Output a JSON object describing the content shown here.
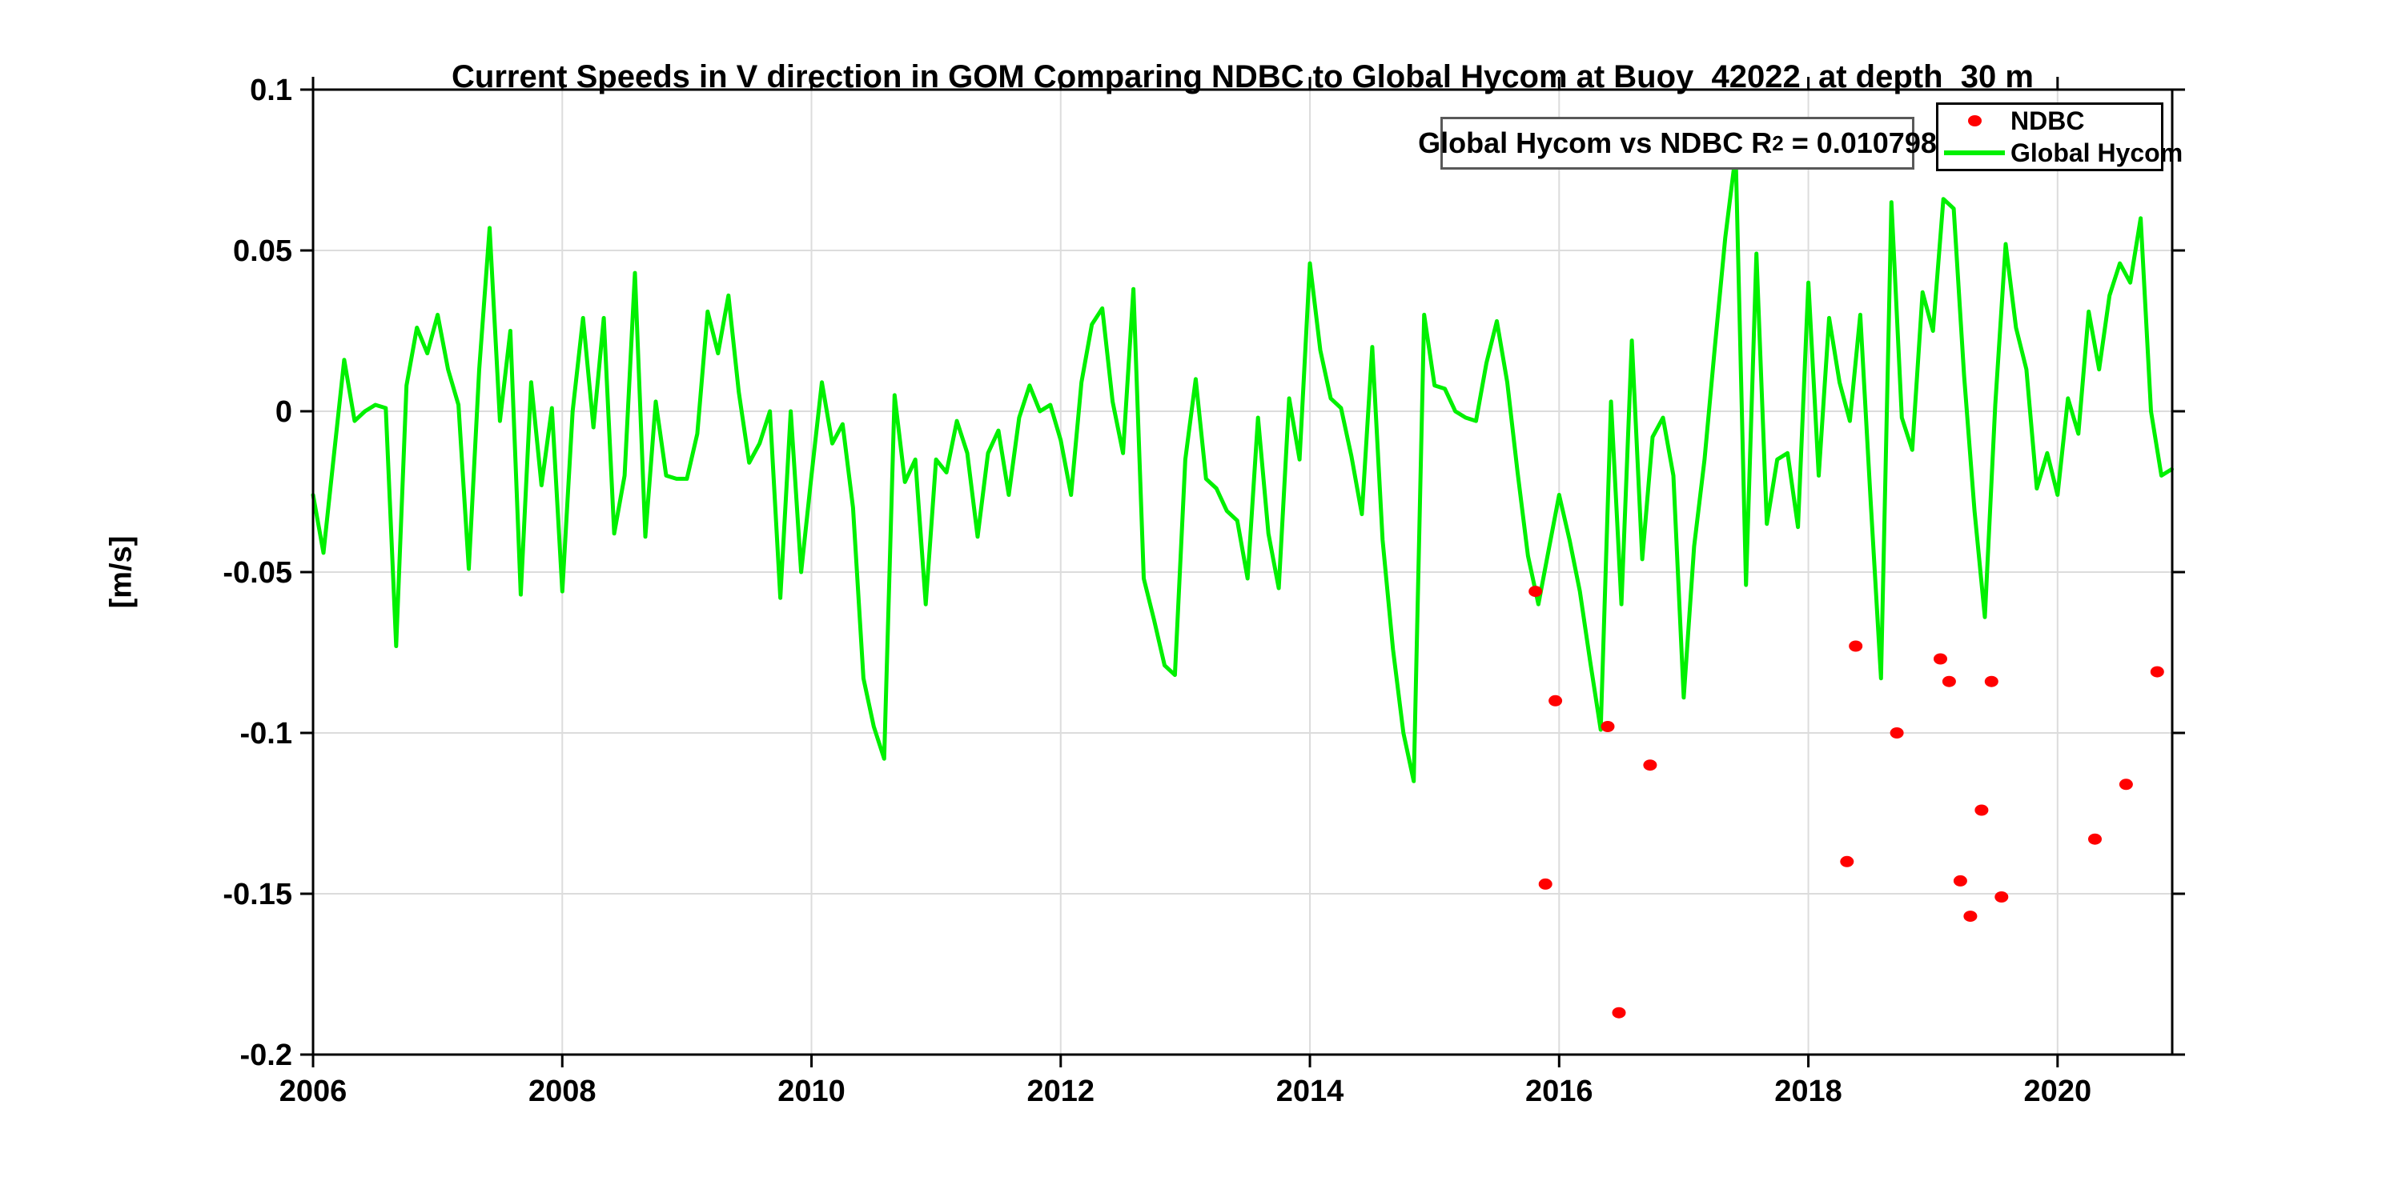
{
  "title": "Current Speeds in V direction in GOM Comparing NDBC to Global Hycom at Buoy  42022  at depth  30 m",
  "ylabel": "[m/s]",
  "annotation": {
    "prefix": "Global Hycom vs NDBC R",
    "sup": "2",
    "suffix": " = 0.010798"
  },
  "legend": {
    "items": [
      {
        "label": "NDBC",
        "color": "#ff0000",
        "marker": "dot"
      },
      {
        "label": "Global Hycom",
        "color": "#00f000",
        "marker": "line"
      }
    ]
  },
  "chart_data": {
    "type": "line+scatter",
    "title": "Current Speeds in V direction in GOM Comparing NDBC to Global Hycom at Buoy  42022  at depth  30 m",
    "xlabel": "",
    "ylabel": "[m/s]",
    "xlim": [
      2006,
      2020.92
    ],
    "ylim": [
      -0.2,
      0.1
    ],
    "x_tick_labels": [
      "2006",
      "2008",
      "2010",
      "2012",
      "2014",
      "2016",
      "2018",
      "2020"
    ],
    "y_tick_labels": [
      "0.1",
      "0.05",
      "0",
      "-0.05",
      "-0.1",
      "-0.15",
      "-0.2"
    ],
    "grid": true,
    "legend_position": "top-right",
    "colors": {
      "line": "#00f000",
      "scatter": "#ff0000",
      "grid": "#dcdcdc",
      "axis": "#000000"
    },
    "series": [
      {
        "name": "Global Hycom",
        "type": "line",
        "color": "#00f000",
        "x_start": 2006.0,
        "x_step_years": 0.0833333,
        "y": [
          -0.026,
          -0.044,
          -0.014,
          0.016,
          -0.003,
          0.0,
          0.002,
          0.001,
          -0.073,
          0.008,
          0.026,
          0.018,
          0.03,
          0.013,
          0.002,
          -0.049,
          0.013,
          0.057,
          -0.003,
          0.025,
          -0.057,
          0.009,
          -0.023,
          0.001,
          -0.056,
          0.0,
          0.029,
          -0.005,
          0.029,
          -0.038,
          -0.02,
          0.043,
          -0.039,
          0.003,
          -0.02,
          -0.021,
          -0.021,
          -0.007,
          0.031,
          0.018,
          0.036,
          0.006,
          -0.016,
          -0.01,
          0.0,
          -0.058,
          0.0,
          -0.05,
          -0.02,
          0.009,
          -0.01,
          -0.004,
          -0.03,
          -0.083,
          -0.098,
          -0.108,
          0.005,
          -0.022,
          -0.015,
          -0.06,
          -0.015,
          -0.019,
          -0.003,
          -0.013,
          -0.039,
          -0.013,
          -0.006,
          -0.026,
          -0.002,
          0.008,
          0.0,
          0.002,
          -0.009,
          -0.026,
          0.009,
          0.027,
          0.032,
          0.003,
          -0.013,
          0.038,
          -0.052,
          -0.065,
          -0.079,
          -0.082,
          -0.015,
          0.01,
          -0.021,
          -0.024,
          -0.031,
          -0.034,
          -0.052,
          -0.002,
          -0.038,
          -0.055,
          0.004,
          -0.015,
          0.046,
          0.019,
          0.004,
          0.001,
          -0.014,
          -0.032,
          0.02,
          -0.04,
          -0.074,
          -0.1,
          -0.115,
          0.03,
          0.008,
          0.007,
          0.0,
          -0.002,
          -0.003,
          0.015,
          0.028,
          0.009,
          -0.019,
          -0.045,
          -0.06,
          -0.043,
          -0.026,
          -0.04,
          -0.056,
          -0.078,
          -0.099,
          0.003,
          -0.06,
          0.022,
          -0.046,
          -0.008,
          -0.002,
          -0.02,
          -0.089,
          -0.042,
          -0.015,
          0.02,
          0.054,
          0.08,
          -0.054,
          0.049,
          -0.035,
          -0.015,
          -0.013,
          -0.036,
          0.04,
          -0.02,
          0.029,
          0.009,
          -0.003,
          0.03,
          -0.028,
          -0.083,
          0.065,
          -0.002,
          -0.012,
          0.037,
          0.025,
          0.066,
          0.063,
          0.011,
          -0.031,
          -0.064,
          0.002,
          0.052,
          0.026,
          0.013,
          -0.024,
          -0.013,
          -0.026,
          0.004,
          -0.007,
          0.031,
          0.013,
          0.036,
          0.046,
          0.04,
          0.06,
          0.0,
          -0.02,
          -0.018
        ]
      },
      {
        "name": "NDBC",
        "type": "scatter",
        "color": "#ff0000",
        "points": [
          [
            2015.81,
            -0.056
          ],
          [
            2015.89,
            -0.147
          ],
          [
            2015.97,
            -0.09
          ],
          [
            2016.39,
            -0.098
          ],
          [
            2016.48,
            -0.187
          ],
          [
            2016.73,
            -0.11
          ],
          [
            2018.31,
            -0.14
          ],
          [
            2018.38,
            -0.073
          ],
          [
            2018.71,
            -0.1
          ],
          [
            2019.06,
            -0.077
          ],
          [
            2019.13,
            -0.084
          ],
          [
            2019.22,
            -0.146
          ],
          [
            2019.3,
            -0.157
          ],
          [
            2019.39,
            -0.124
          ],
          [
            2019.47,
            -0.084
          ],
          [
            2019.55,
            -0.151
          ],
          [
            2020.3,
            -0.133
          ],
          [
            2020.55,
            -0.116
          ],
          [
            2020.8,
            -0.081
          ]
        ]
      }
    ]
  }
}
